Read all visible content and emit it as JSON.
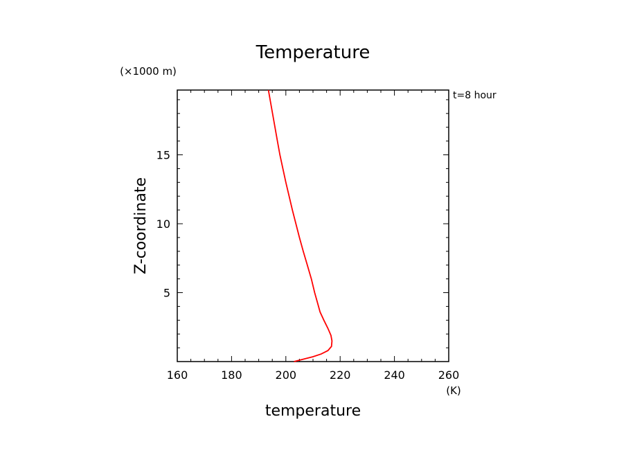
{
  "chart_data": {
    "type": "line",
    "title": "Temperature",
    "xlabel": "temperature",
    "ylabel": "Z-coordinate",
    "x_unit": "(K)",
    "y_unit": "(×1000 m)",
    "annotation": "t=8 hour",
    "xlim": [
      160,
      260
    ],
    "ylim": [
      0,
      19.7
    ],
    "x_ticks": [
      160,
      180,
      200,
      220,
      240,
      260
    ],
    "x_tick_labels": [
      "160",
      "180",
      "200",
      "220",
      "240",
      "260"
    ],
    "y_ticks": [
      5,
      10,
      15
    ],
    "y_tick_labels": [
      "5",
      "10",
      "15"
    ],
    "grid": false,
    "line_color": "#ff0000",
    "series": [
      {
        "x": [
          203,
          206,
          210,
          213,
          215.5,
          216.8,
          217.0,
          216.6,
          215.5,
          214.0,
          212.6,
          211.6,
          210.6,
          209.4,
          207.9,
          206.4,
          205.0,
          203.7,
          202.4,
          201.2,
          200.0,
          198.9,
          197.8,
          196.9
        ],
        "y": [
          0,
          0.15,
          0.35,
          0.55,
          0.8,
          1.1,
          1.5,
          1.9,
          2.4,
          3.0,
          3.6,
          4.3,
          5.0,
          6.0,
          7.0,
          8.0,
          9.0,
          10.0,
          11.0,
          12.0,
          13.0,
          14.0,
          15.0,
          16.0
        ],
        "note": "values estimated from axes"
      }
    ]
  }
}
